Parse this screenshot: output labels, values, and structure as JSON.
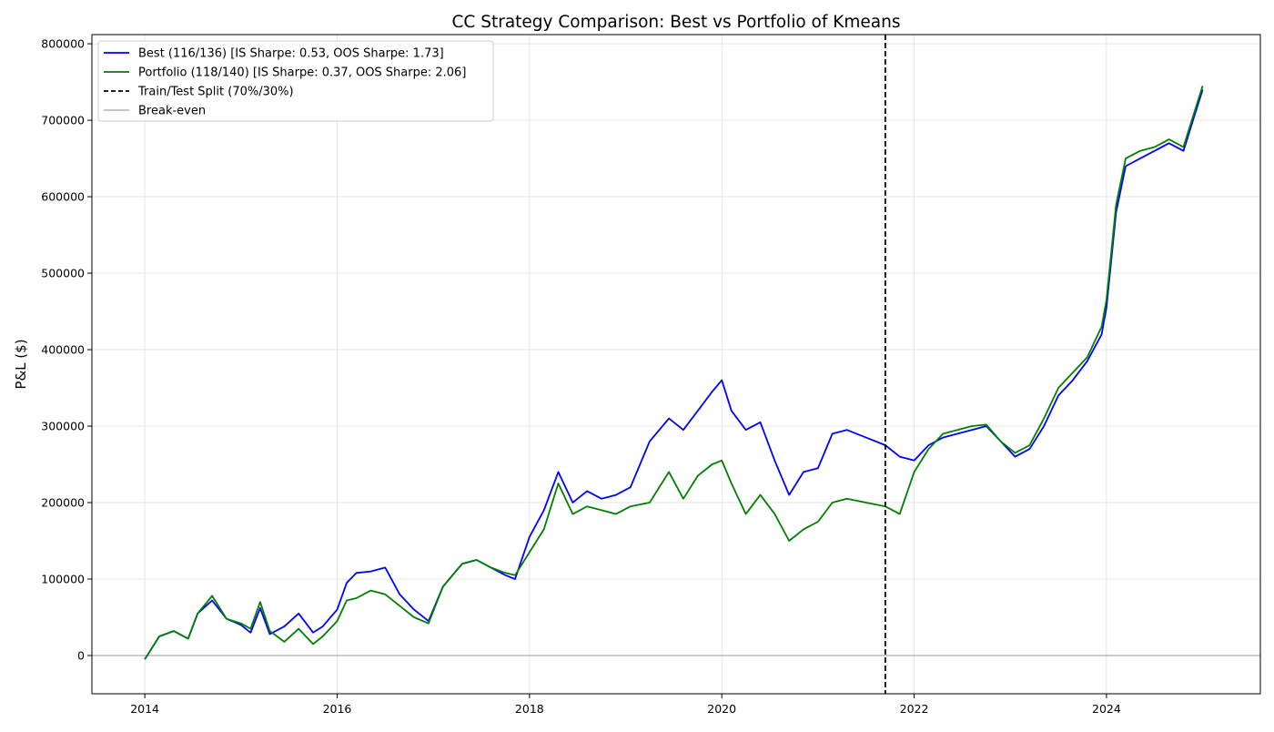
{
  "chart_data": {
    "type": "line",
    "title": "CC Strategy Comparison: Best vs Portfolio of Kmeans",
    "xlabel": "",
    "ylabel": "P&L ($)",
    "xlim": [
      2013.45,
      2025.6
    ],
    "ylim": [
      -50000,
      812000
    ],
    "x_ticks": [
      2014,
      2016,
      2018,
      2020,
      2022,
      2024
    ],
    "y_ticks": [
      0,
      100000,
      200000,
      300000,
      400000,
      500000,
      600000,
      700000,
      800000
    ],
    "grid": true,
    "legend_position": "top-left",
    "legend": [
      {
        "label": "Best (116/136) [IS Sharpe: 0.53, OOS Sharpe: 1.73]",
        "color": "#0000ff",
        "style": "solid"
      },
      {
        "label": "Portfolio (118/140) [IS Sharpe: 0.37, OOS Sharpe: 2.06]",
        "color": "#008000",
        "style": "solid"
      },
      {
        "label": "Train/Test Split (70%/30%)",
        "color": "#000000",
        "style": "dashed"
      },
      {
        "label": "Break-even",
        "color": "#bbbbbb",
        "style": "solid"
      }
    ],
    "split_x": 2021.7,
    "breakeven_y": 0,
    "series": [
      {
        "name": "Best (116/136) [IS Sharpe: 0.53, OOS Sharpe: 1.73]",
        "color": "#0000ff",
        "x": [
          2014.0,
          2014.05,
          2014.15,
          2014.3,
          2014.45,
          2014.55,
          2014.7,
          2014.85,
          2015.0,
          2015.1,
          2015.2,
          2015.3,
          2015.45,
          2015.6,
          2015.75,
          2015.85,
          2016.0,
          2016.1,
          2016.2,
          2016.35,
          2016.5,
          2016.65,
          2016.8,
          2016.95,
          2017.1,
          2017.3,
          2017.45,
          2017.6,
          2017.75,
          2017.85,
          2018.0,
          2018.15,
          2018.3,
          2018.45,
          2018.6,
          2018.75,
          2018.9,
          2019.05,
          2019.25,
          2019.45,
          2019.6,
          2019.75,
          2019.9,
          2020.0,
          2020.1,
          2020.25,
          2020.4,
          2020.55,
          2020.7,
          2020.85,
          2021.0,
          2021.15,
          2021.3,
          2021.5,
          2021.7,
          2021.85,
          2022.0,
          2022.15,
          2022.3,
          2022.45,
          2022.6,
          2022.75,
          2022.9,
          2023.05,
          2023.2,
          2023.35,
          2023.5,
          2023.65,
          2023.8,
          2023.95,
          2024.0,
          2024.1,
          2024.2,
          2024.35,
          2024.5,
          2024.65,
          2024.8,
          2024.9,
          2025.0
        ],
        "values": [
          -5000,
          5000,
          25000,
          32000,
          22000,
          55000,
          72000,
          48000,
          40000,
          30000,
          62000,
          28000,
          38000,
          55000,
          30000,
          38000,
          60000,
          95000,
          108000,
          110000,
          115000,
          80000,
          60000,
          45000,
          90000,
          120000,
          125000,
          115000,
          105000,
          100000,
          155000,
          190000,
          240000,
          200000,
          215000,
          205000,
          210000,
          220000,
          280000,
          310000,
          295000,
          320000,
          345000,
          360000,
          320000,
          295000,
          305000,
          255000,
          210000,
          240000,
          245000,
          290000,
          295000,
          285000,
          275000,
          260000,
          255000,
          275000,
          285000,
          290000,
          295000,
          300000,
          280000,
          260000,
          270000,
          300000,
          340000,
          360000,
          385000,
          420000,
          455000,
          580000,
          640000,
          650000,
          660000,
          670000,
          660000,
          700000,
          740000
        ]
      },
      {
        "name": "Portfolio (118/140) [IS Sharpe: 0.37, OOS Sharpe: 2.06]",
        "color": "#008000",
        "x": [
          2014.0,
          2014.05,
          2014.15,
          2014.3,
          2014.45,
          2014.55,
          2014.7,
          2014.85,
          2015.0,
          2015.1,
          2015.2,
          2015.3,
          2015.45,
          2015.6,
          2015.75,
          2015.85,
          2016.0,
          2016.1,
          2016.2,
          2016.35,
          2016.5,
          2016.65,
          2016.8,
          2016.95,
          2017.1,
          2017.3,
          2017.45,
          2017.6,
          2017.75,
          2017.85,
          2018.0,
          2018.15,
          2018.3,
          2018.45,
          2018.6,
          2018.75,
          2018.9,
          2019.05,
          2019.25,
          2019.45,
          2019.6,
          2019.75,
          2019.9,
          2020.0,
          2020.1,
          2020.25,
          2020.4,
          2020.55,
          2020.7,
          2020.85,
          2021.0,
          2021.15,
          2021.3,
          2021.5,
          2021.7,
          2021.85,
          2022.0,
          2022.15,
          2022.3,
          2022.45,
          2022.6,
          2022.75,
          2022.9,
          2023.05,
          2023.2,
          2023.35,
          2023.5,
          2023.65,
          2023.8,
          2023.95,
          2024.0,
          2024.1,
          2024.2,
          2024.35,
          2024.5,
          2024.65,
          2024.8,
          2024.9,
          2025.0
        ],
        "values": [
          -5000,
          5000,
          25000,
          32000,
          22000,
          55000,
          78000,
          48000,
          42000,
          35000,
          70000,
          32000,
          18000,
          35000,
          15000,
          25000,
          45000,
          72000,
          75000,
          85000,
          80000,
          65000,
          50000,
          42000,
          90000,
          120000,
          125000,
          115000,
          108000,
          105000,
          135000,
          165000,
          225000,
          185000,
          195000,
          190000,
          185000,
          195000,
          200000,
          240000,
          205000,
          235000,
          250000,
          255000,
          225000,
          185000,
          210000,
          185000,
          150000,
          165000,
          175000,
          200000,
          205000,
          200000,
          195000,
          185000,
          240000,
          270000,
          290000,
          295000,
          300000,
          302000,
          280000,
          265000,
          275000,
          310000,
          350000,
          370000,
          390000,
          430000,
          465000,
          590000,
          650000,
          660000,
          665000,
          675000,
          665000,
          705000,
          745000
        ]
      }
    ]
  }
}
